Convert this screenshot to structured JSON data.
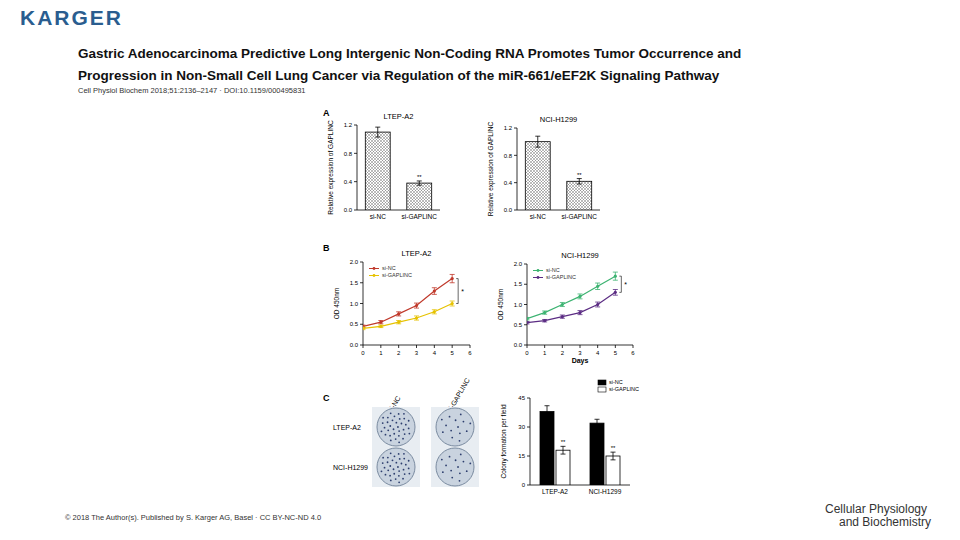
{
  "page": {
    "brand": "KARGER",
    "title_lines": [
      "Gastric Adenocarcinoma Predictive Long Intergenic Non-Coding RNA Promotes Tumor Occurrence and",
      "Progression in Non-Small Cell Lung Cancer via Regulation of the miR-661/eEF2K Signaling Pathway"
    ],
    "citation": "Cell Physiol Biochem 2018;51:2136–2147 · DOI:10.1159/000495831",
    "panels": [
      "A",
      "B",
      "C"
    ],
    "plates": {
      "columns": [
        "si-NC",
        "si-GAPLINC"
      ],
      "rows": [
        "LTEP-A2",
        "NCI-H1299"
      ]
    },
    "copyright": "© 2018 The Author(s). Published by S. Karger AG, Basel · CC BY-NC-ND 4.0",
    "journal": [
      "Cellular Physiology",
      "and Biochemistry"
    ]
  },
  "chart_data": [
    {
      "type": "bar",
      "title": "LTEP-A2",
      "y_label": "Relative expression of GAPLINC",
      "categories": [
        "si-NC",
        "si-GAPLINC"
      ],
      "values": [
        1.1,
        0.38
      ],
      "errors": [
        0.07,
        0.03
      ],
      "color": "#ffffff",
      "significance": [
        null,
        "**"
      ],
      "ylim": [
        0,
        1.2
      ],
      "yticks": [
        {
          "value": 0,
          "label": "0.0"
        },
        0.4,
        0.8,
        1.2
      ]
    },
    {
      "type": "bar",
      "title": "NCI-H1299",
      "y_label": "Relative expression of GAPLINC",
      "categories": [
        "si-NC",
        "si-GAPLINC"
      ],
      "values": [
        1.0,
        0.42
      ],
      "errors": [
        0.08,
        0.04
      ],
      "color": "#ffffff",
      "significance": [
        null,
        "**"
      ],
      "ylim": [
        0,
        1.2
      ],
      "yticks": [
        {
          "value": 0,
          "label": "0.0"
        },
        0.4,
        0.8,
        1.2
      ]
    },
    {
      "type": "line",
      "title": "LTEP-A2",
      "y_label": "OD 450nm",
      "x": [
        0,
        1,
        2,
        3,
        4,
        5
      ],
      "xlim": [
        0,
        6
      ],
      "xticks": [
        0,
        1,
        2,
        3,
        4,
        5,
        6
      ],
      "ylim": [
        0,
        2
      ],
      "yticks": [
        {
          "value": 0,
          "label": "0.0"
        },
        0.5,
        {
          "value": 1,
          "label": "1.0"
        },
        1.5,
        {
          "value": 2,
          "label": "2.0"
        }
      ],
      "legend": "top-left",
      "marker": "circle",
      "significance": "*",
      "series": [
        {
          "name": "si-NC",
          "color": "#c0392b",
          "values": [
            0.45,
            0.55,
            0.75,
            0.95,
            1.3,
            1.6
          ],
          "errors": [
            0.03,
            0.04,
            0.05,
            0.06,
            0.08,
            0.1
          ]
        },
        {
          "name": "si-GAPLINC",
          "color": "#e6c200",
          "values": [
            0.4,
            0.45,
            0.55,
            0.65,
            0.8,
            1.0
          ],
          "errors": [
            0.03,
            0.03,
            0.04,
            0.05,
            0.05,
            0.06
          ]
        }
      ]
    },
    {
      "type": "line",
      "title": "NCI-H1299",
      "x_label": "Days",
      "y_label": "OD 450nm",
      "x": [
        0,
        1,
        2,
        3,
        4,
        5
      ],
      "xlim": [
        0,
        6
      ],
      "xticks": [
        0,
        1,
        2,
        3,
        4,
        5,
        6
      ],
      "ylim": [
        0,
        2
      ],
      "yticks": [
        {
          "value": 0,
          "label": "0.0"
        },
        0.5,
        {
          "value": 1,
          "label": "1.0"
        },
        1.5,
        {
          "value": 2,
          "label": "2.0"
        }
      ],
      "legend": "top-left",
      "marker": "circle",
      "significance": "*",
      "series": [
        {
          "name": "si-NC",
          "color": "#3cb371",
          "values": [
            0.65,
            0.8,
            1.0,
            1.2,
            1.45,
            1.7
          ],
          "errors": [
            0.03,
            0.04,
            0.05,
            0.06,
            0.08,
            0.1
          ]
        },
        {
          "name": "si-GAPLINC",
          "color": "#5b2c83",
          "values": [
            0.55,
            0.6,
            0.7,
            0.8,
            1.0,
            1.3
          ],
          "errors": [
            0.03,
            0.03,
            0.04,
            0.05,
            0.06,
            0.07
          ]
        }
      ]
    },
    {
      "type": "bar",
      "y_label": "Colony formation per field",
      "categories": [
        "LTEP-A2",
        "NCI-H1299"
      ],
      "ylim": [
        0,
        45
      ],
      "yticks": [
        0,
        15,
        30,
        45
      ],
      "legend": "top-right",
      "series": [
        {
          "name": "si-NC",
          "color": "#000000",
          "values": [
            38,
            32
          ],
          "errors": [
            3,
            2
          ]
        },
        {
          "name": "si-GAPLINC",
          "color": "#ffffff",
          "values": [
            18,
            15
          ],
          "errors": [
            2,
            2
          ],
          "significance": [
            "**",
            "**"
          ]
        }
      ]
    }
  ]
}
